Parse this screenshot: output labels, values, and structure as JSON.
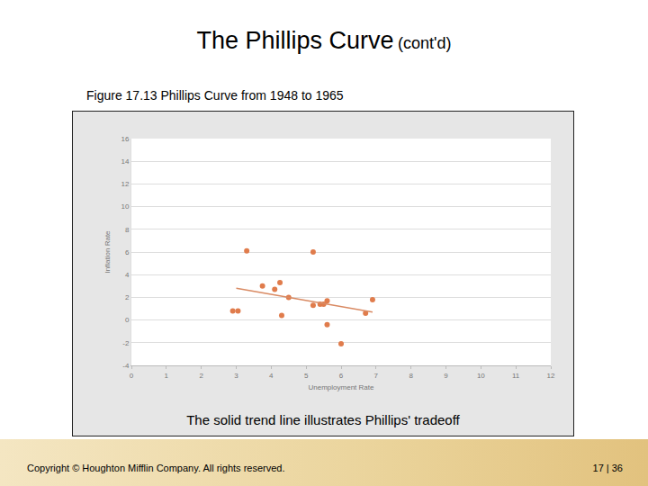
{
  "slide": {
    "title": "The Phillips Curve",
    "title_suffix": "(cont'd)",
    "figure_caption": "Figure 17.13 Phillips Curve from 1948 to 1965",
    "caption": "The solid trend line illustrates Phillips' tradeoff",
    "footer": "Copyright © Houghton Mifflin Company.  All rights reserved.",
    "page": "17 | 36"
  },
  "chart_data": {
    "type": "scatter",
    "x_label": "Unemployment Rate",
    "y_label": "Inflation Rate",
    "xlim": [
      0,
      12
    ],
    "xticks": [
      0,
      1,
      2,
      3,
      4,
      5,
      6,
      7,
      8,
      9,
      10,
      11,
      12
    ],
    "ylim": [
      -4,
      16
    ],
    "yticks": [
      -4,
      -2,
      0,
      2,
      4,
      6,
      8,
      10,
      12,
      14,
      16
    ],
    "grid": true,
    "series": [
      {
        "type": "scatter",
        "color": "#e07c4c",
        "marker": "circle",
        "x": [
          2.9,
          3.05,
          3.3,
          3.75,
          4.1,
          4.25,
          4.3,
          4.5,
          5.2,
          5.2,
          5.4,
          5.5,
          5.6,
          5.6,
          6.0,
          6.7,
          6.9
        ],
        "values": [
          0.8,
          0.8,
          6.1,
          3.0,
          2.7,
          3.3,
          0.4,
          2.0,
          6.0,
          1.3,
          1.4,
          1.4,
          -0.4,
          1.7,
          -2.1,
          0.6,
          1.8
        ]
      },
      {
        "type": "line",
        "color": "#d98a63",
        "line_style": "solid",
        "x": [
          3.0,
          6.9
        ],
        "values": [
          2.8,
          0.7
        ]
      }
    ]
  }
}
